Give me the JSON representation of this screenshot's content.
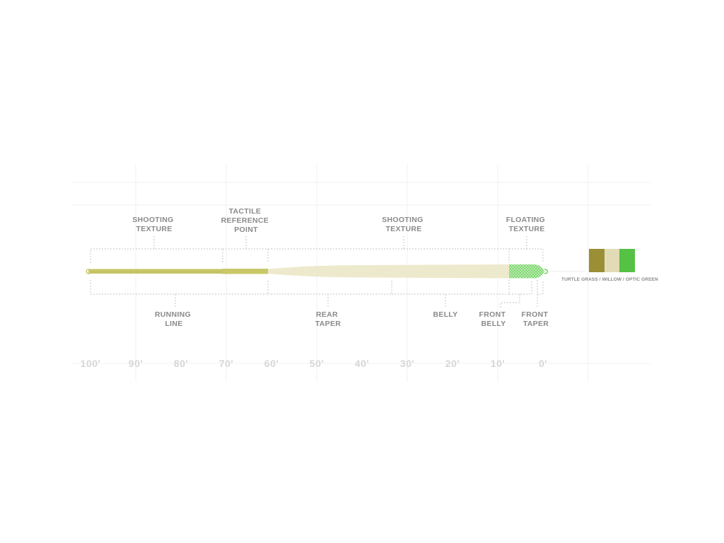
{
  "colors": {
    "turtle_grass": "#9a8f35",
    "willow": "#e2dcb6",
    "optic_green": "#55c145",
    "running_line": "#c6c466",
    "body": "#ede9cc"
  },
  "top_labels": [
    {
      "lines": [
        "SHOOTING",
        "TEXTURE"
      ]
    },
    {
      "lines": [
        "TACTILE",
        "REFERENCE",
        "POINT"
      ]
    },
    {
      "lines": [
        "SHOOTING",
        "TEXTURE"
      ]
    },
    {
      "lines": [
        "FLOATING",
        "TEXTURE"
      ]
    }
  ],
  "bottom_labels": [
    {
      "lines": [
        "RUNNING",
        "LINE"
      ]
    },
    {
      "lines": [
        "REAR",
        "TAPER"
      ]
    },
    {
      "lines": [
        "BELLY"
      ]
    },
    {
      "lines": [
        "FRONT",
        "BELLY"
      ]
    },
    {
      "lines": [
        "FRONT",
        "TAPER"
      ]
    }
  ],
  "scale": [
    "100'",
    "90'",
    "80'",
    "70'",
    "60'",
    "50'",
    "40'",
    "30'",
    "20'",
    "10'",
    "0'"
  ],
  "swatch_label": "TURTLE GRASS / WILLOW / OPTIC GREEN",
  "swatches": [
    "turtle_grass",
    "willow",
    "optic_green"
  ]
}
